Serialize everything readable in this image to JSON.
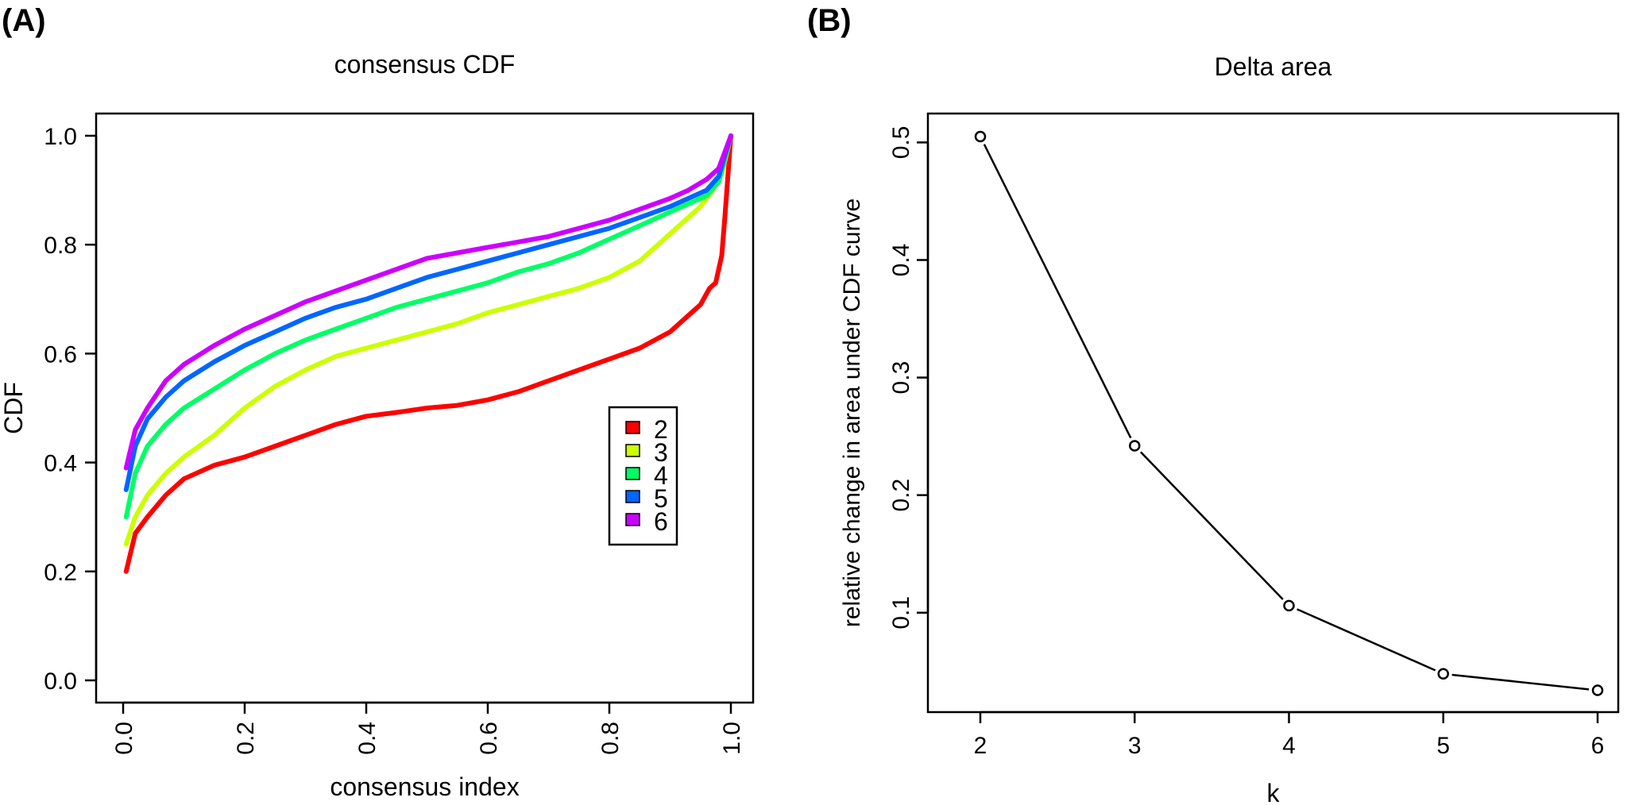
{
  "panels": {
    "a_label": "(A)",
    "b_label": "(B)"
  },
  "chart_data": [
    {
      "type": "line",
      "title": "consensus CDF",
      "xlabel": "consensus index",
      "ylabel": "CDF",
      "xlim": [
        0,
        1
      ],
      "ylim": [
        0,
        1
      ],
      "xticks": [
        "0.0",
        "0.2",
        "0.4",
        "0.6",
        "0.8",
        "1.0"
      ],
      "yticks": [
        "0.0",
        "0.2",
        "0.4",
        "0.6",
        "0.8",
        "1.0"
      ],
      "legend": {
        "placement": "center-right",
        "entries": [
          "2",
          "3",
          "4",
          "5",
          "6"
        ]
      },
      "series": [
        {
          "name": "2",
          "color": "#ff0000",
          "x": [
            0.005,
            0.02,
            0.04,
            0.07,
            0.1,
            0.15,
            0.2,
            0.25,
            0.3,
            0.35,
            0.4,
            0.45,
            0.5,
            0.55,
            0.6,
            0.65,
            0.7,
            0.75,
            0.8,
            0.85,
            0.9,
            0.93,
            0.95,
            0.965,
            0.975,
            0.985,
            0.99,
            1.0
          ],
          "y": [
            0.2,
            0.27,
            0.3,
            0.34,
            0.37,
            0.395,
            0.41,
            0.43,
            0.45,
            0.47,
            0.485,
            0.492,
            0.5,
            0.505,
            0.515,
            0.53,
            0.55,
            0.57,
            0.59,
            0.61,
            0.64,
            0.67,
            0.69,
            0.72,
            0.73,
            0.78,
            0.85,
            1.0
          ]
        },
        {
          "name": "3",
          "color": "#ccff00",
          "x": [
            0.005,
            0.02,
            0.04,
            0.07,
            0.1,
            0.15,
            0.2,
            0.25,
            0.3,
            0.35,
            0.4,
            0.45,
            0.5,
            0.55,
            0.6,
            0.65,
            0.7,
            0.75,
            0.8,
            0.85,
            0.9,
            0.93,
            0.95,
            0.97,
            0.985,
            1.0
          ],
          "y": [
            0.25,
            0.3,
            0.34,
            0.38,
            0.41,
            0.45,
            0.5,
            0.54,
            0.57,
            0.595,
            0.61,
            0.625,
            0.64,
            0.655,
            0.675,
            0.69,
            0.705,
            0.72,
            0.74,
            0.77,
            0.82,
            0.85,
            0.87,
            0.9,
            0.93,
            1.0
          ]
        },
        {
          "name": "4",
          "color": "#00ff66",
          "x": [
            0.005,
            0.02,
            0.04,
            0.07,
            0.1,
            0.15,
            0.2,
            0.25,
            0.3,
            0.35,
            0.4,
            0.45,
            0.5,
            0.55,
            0.6,
            0.65,
            0.7,
            0.75,
            0.8,
            0.85,
            0.9,
            0.93,
            0.96,
            0.98,
            1.0
          ],
          "y": [
            0.3,
            0.38,
            0.43,
            0.47,
            0.5,
            0.535,
            0.57,
            0.6,
            0.625,
            0.645,
            0.665,
            0.685,
            0.7,
            0.715,
            0.73,
            0.75,
            0.765,
            0.785,
            0.81,
            0.835,
            0.86,
            0.875,
            0.89,
            0.915,
            1.0
          ]
        },
        {
          "name": "5",
          "color": "#0066ff",
          "x": [
            0.005,
            0.02,
            0.04,
            0.07,
            0.1,
            0.15,
            0.2,
            0.25,
            0.3,
            0.35,
            0.4,
            0.45,
            0.5,
            0.55,
            0.6,
            0.65,
            0.7,
            0.75,
            0.8,
            0.85,
            0.9,
            0.93,
            0.96,
            0.98,
            1.0
          ],
          "y": [
            0.35,
            0.43,
            0.48,
            0.52,
            0.55,
            0.585,
            0.615,
            0.64,
            0.665,
            0.685,
            0.7,
            0.72,
            0.74,
            0.755,
            0.77,
            0.785,
            0.8,
            0.815,
            0.83,
            0.85,
            0.87,
            0.885,
            0.9,
            0.925,
            1.0
          ]
        },
        {
          "name": "6",
          "color": "#cc00ff",
          "x": [
            0.005,
            0.02,
            0.04,
            0.07,
            0.1,
            0.15,
            0.2,
            0.25,
            0.3,
            0.35,
            0.4,
            0.45,
            0.5,
            0.55,
            0.6,
            0.65,
            0.7,
            0.75,
            0.8,
            0.85,
            0.9,
            0.93,
            0.96,
            0.98,
            1.0
          ],
          "y": [
            0.39,
            0.46,
            0.5,
            0.55,
            0.58,
            0.615,
            0.645,
            0.67,
            0.695,
            0.715,
            0.735,
            0.755,
            0.775,
            0.785,
            0.795,
            0.805,
            0.815,
            0.83,
            0.845,
            0.865,
            0.885,
            0.9,
            0.92,
            0.94,
            1.0
          ]
        }
      ]
    },
    {
      "type": "line",
      "title": "Delta area",
      "xlabel": "k",
      "ylabel": "relative change in area under CDF curve",
      "xlim": [
        2,
        6
      ],
      "ylim": [
        0.033,
        0.505
      ],
      "xticks": [
        "2",
        "3",
        "4",
        "5",
        "6"
      ],
      "yticks": [
        "0.1",
        "0.2",
        "0.3",
        "0.4",
        "0.5"
      ],
      "series": [
        {
          "name": "delta",
          "color": "#000000",
          "marker": "open-circle",
          "x": [
            2,
            3,
            4,
            5,
            6
          ],
          "y": [
            0.505,
            0.242,
            0.106,
            0.048,
            0.034
          ]
        }
      ]
    }
  ]
}
